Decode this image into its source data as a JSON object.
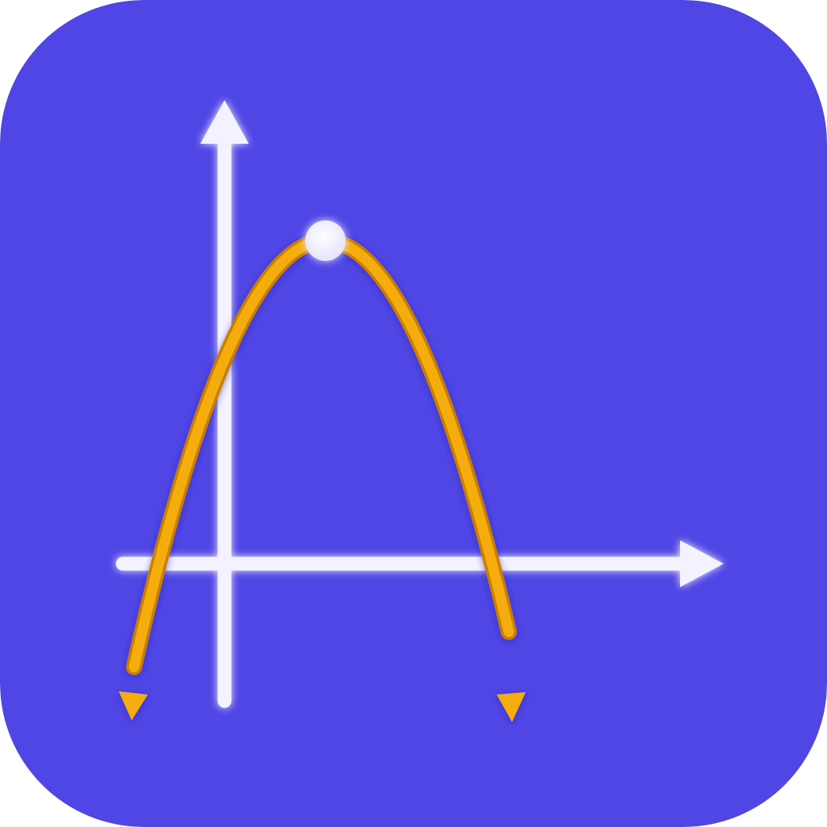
{
  "icon": {
    "name": "parabola-graph-app-icon",
    "background_color": "#4f46e5",
    "axis_color": "#f4f2ff",
    "curve_color": "#f5ac0f",
    "curve_edge_color": "#c87f00",
    "vertex_color": "#ffffff"
  }
}
